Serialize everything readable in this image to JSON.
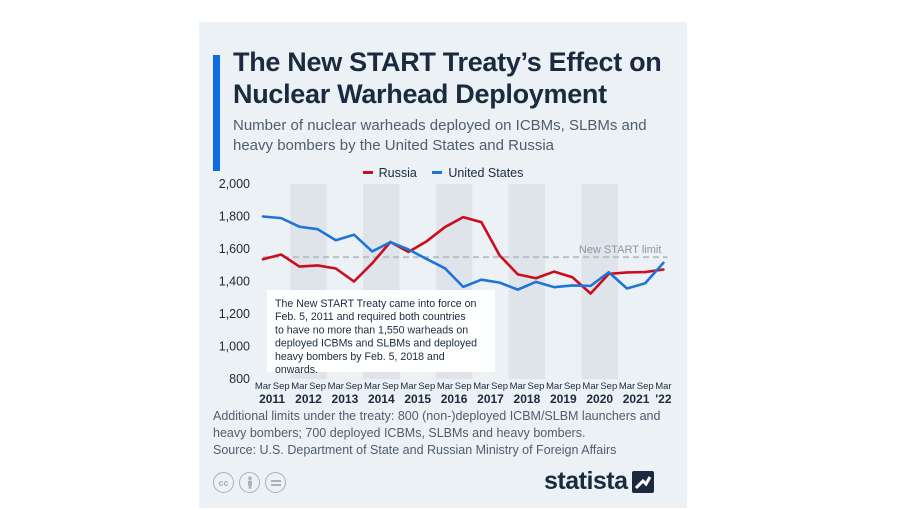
{
  "title": "The New START Treaty’s Effect on Nuclear Warhead Deployment",
  "subtitle": "Number of nuclear warheads deployed on ICBMs, SLBMs and heavy bombers by the United States and Russia",
  "footnote": "Additional limits under the treaty: 800 (non-)deployed ICBM/SLBM launchers and heavy bombers; 700 deployed ICBMs, SLBMs and heavy bombers.",
  "source": "Source: U.S. Department of State and Russian Ministry of Foreign Affairs",
  "brand": "statista",
  "icons": {
    "cc": "cc-icon",
    "person": "person-icon",
    "equals": "equals-icon"
  },
  "colors": {
    "russia": "#cc0c1f",
    "us": "#1f74d6",
    "limit": "#b9c0c8",
    "band": "#dee4e9",
    "accent": "#0d6be3",
    "card": "#ebf1f5"
  },
  "chart_data": {
    "type": "line",
    "ylim": [
      800,
      2000
    ],
    "yticks": [
      800,
      1000,
      1200,
      1400,
      1600,
      1800,
      2000
    ],
    "ytick_labels": [
      "800",
      "1,000",
      "1,200",
      "1,400",
      "1,600",
      "1,800",
      "2,000"
    ],
    "x": [
      "Mar 2011",
      "Sep 2011",
      "Mar 2012",
      "Sep 2012",
      "Mar 2013",
      "Sep 2013",
      "Mar 2014",
      "Sep 2014",
      "Mar 2015",
      "Sep 2015",
      "Mar 2016",
      "Sep 2016",
      "Mar 2017",
      "Sep 2017",
      "Mar 2018",
      "Sep 2018",
      "Mar 2019",
      "Sep 2019",
      "Mar 2020",
      "Sep 2020",
      "Mar 2021",
      "Sep 2021",
      "Mar 2022"
    ],
    "x_month_labels": [
      "Mar",
      "Sep",
      "Mar",
      "Sep",
      "Mar",
      "Sep",
      "Mar",
      "Sep",
      "Mar",
      "Sep",
      "Mar",
      "Sep",
      "Mar",
      "Sep",
      "Mar",
      "Sep",
      "Mar",
      "Sep",
      "Mar",
      "Sep",
      "Mar",
      "Sep",
      "Mar"
    ],
    "x_year_labels": [
      "2011",
      "2012",
      "2013",
      "2014",
      "2015",
      "2016",
      "2017",
      "2018",
      "2019",
      "2020",
      "2021",
      "'22"
    ],
    "series": [
      {
        "name": "Russia",
        "values": [
          1537,
          1566,
          1492,
          1499,
          1480,
          1400,
          1512,
          1643,
          1582,
          1648,
          1735,
          1796,
          1765,
          1561,
          1444,
          1420,
          1461,
          1426,
          1326,
          1447,
          1456,
          1458,
          1474
        ]
      },
      {
        "name": "United States",
        "values": [
          1800,
          1790,
          1737,
          1722,
          1654,
          1688,
          1585,
          1642,
          1597,
          1538,
          1481,
          1367,
          1411,
          1393,
          1350,
          1398,
          1365,
          1376,
          1373,
          1457,
          1357,
          1389,
          1515
        ]
      }
    ],
    "reference_line": {
      "value": 1550,
      "label": "New START limit"
    },
    "annotation": "The New START Treaty came into force on Feb. 5, 2011 and required both countries to have no more than 1,550 warheads on deployed ICBMs and SLBMs and deployed heavy bombers by Feb. 5, 2018 and onwards.",
    "grid": false,
    "legend_position": "top-center"
  }
}
